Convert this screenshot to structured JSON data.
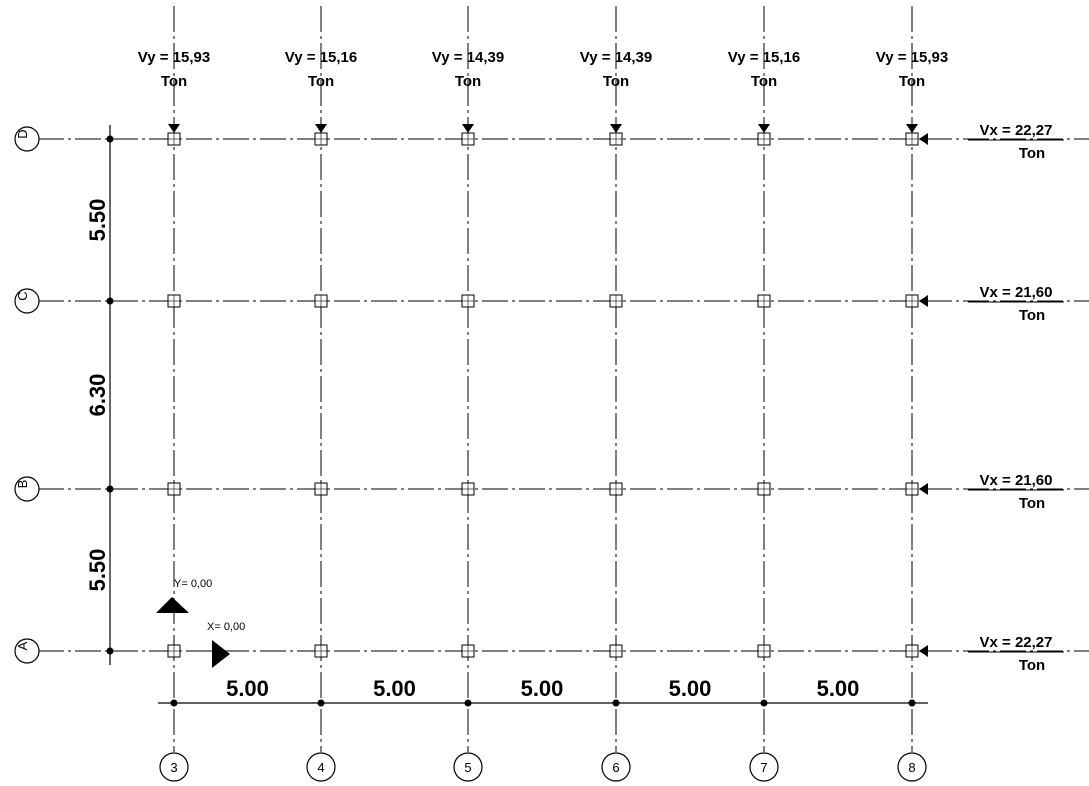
{
  "grid": {
    "columns": [
      "3",
      "4",
      "5",
      "6",
      "7",
      "8"
    ],
    "rows": [
      "D",
      "C",
      "B",
      "A"
    ]
  },
  "vy_loads": [
    {
      "value": "Vy = 15,93",
      "unit": "Ton"
    },
    {
      "value": "Vy = 15,16",
      "unit": "Ton"
    },
    {
      "value": "Vy = 14,39",
      "unit": "Ton"
    },
    {
      "value": "Vy = 14,39",
      "unit": "Ton"
    },
    {
      "value": "Vy = 15,16",
      "unit": "Ton"
    },
    {
      "value": "Vy = 15,93",
      "unit": "Ton"
    }
  ],
  "vx_loads": [
    {
      "value": "Vx = 22,27",
      "unit": "Ton"
    },
    {
      "value": "Vx = 21,60",
      "unit": "Ton"
    },
    {
      "value": "Vx = 21,60",
      "unit": "Ton"
    },
    {
      "value": "Vx = 22,27",
      "unit": "Ton"
    }
  ],
  "dimensions": {
    "vertical": [
      "5.50",
      "6.30",
      "5.50"
    ],
    "horizontal": [
      "5.00",
      "5.00",
      "5.00",
      "5.00",
      "5.00"
    ]
  },
  "origin": {
    "y_label": "Y= 0,00",
    "x_label": "X= 0,00"
  }
}
